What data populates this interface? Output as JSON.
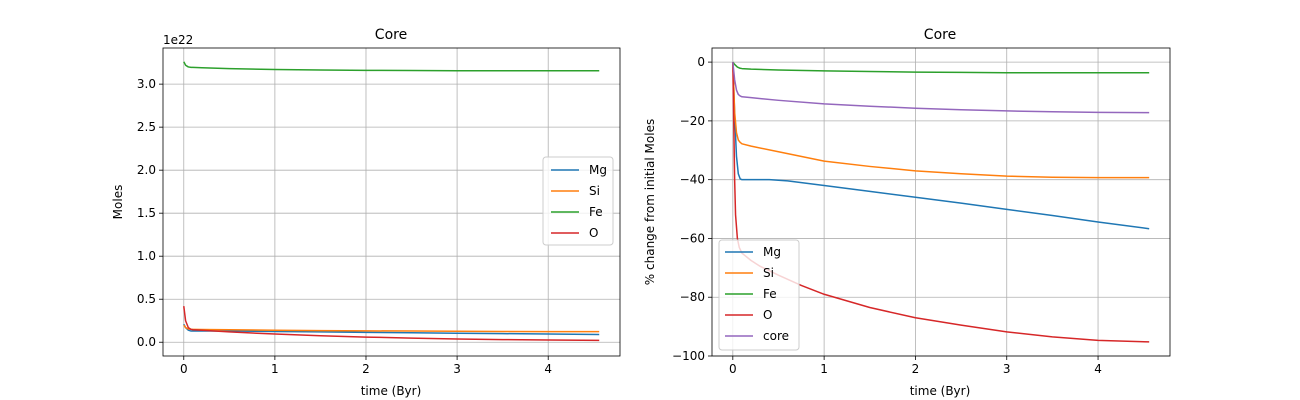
{
  "chart_data": [
    {
      "type": "line",
      "title": "Core",
      "xlabel": "time (Byr)",
      "ylabel": "Moles",
      "y_offset_label": "1e22",
      "xlim": [
        -0.228,
        4.788
      ],
      "ylim": [
        -0.16,
        3.42
      ],
      "xticks": [
        0,
        1,
        2,
        3,
        4
      ],
      "xtick_labels": [
        "0",
        "1",
        "2",
        "3",
        "4"
      ],
      "yticks": [
        0.0,
        0.5,
        1.0,
        1.5,
        2.0,
        2.5,
        3.0
      ],
      "ytick_labels": [
        "0.0",
        "0.5",
        "1.0",
        "1.5",
        "2.0",
        "2.5",
        "3.0"
      ],
      "grid": true,
      "legend_position": "center-right",
      "series": [
        {
          "name": "Mg",
          "color": "#1f77b4",
          "x": [
            0,
            0.02,
            0.05,
            0.08,
            0.1,
            0.2,
            0.5,
            1,
            1.5,
            2,
            2.5,
            3,
            3.5,
            4,
            4.56
          ],
          "y": [
            0.21,
            0.17,
            0.14,
            0.13,
            0.13,
            0.13,
            0.13,
            0.125,
            0.12,
            0.115,
            0.11,
            0.105,
            0.1,
            0.095,
            0.09
          ]
        },
        {
          "name": "Si",
          "color": "#ff7f0e",
          "x": [
            0,
            0.02,
            0.05,
            0.08,
            0.1,
            0.2,
            0.5,
            1,
            1.5,
            2,
            2.5,
            3,
            3.5,
            4,
            4.56
          ],
          "y": [
            0.2,
            0.17,
            0.155,
            0.15,
            0.15,
            0.148,
            0.145,
            0.14,
            0.135,
            0.132,
            0.13,
            0.127,
            0.125,
            0.124,
            0.123
          ]
        },
        {
          "name": "Fe",
          "color": "#2ca02c",
          "x": [
            0,
            0.02,
            0.05,
            0.08,
            0.1,
            0.2,
            0.5,
            1,
            1.5,
            2,
            2.5,
            3,
            3.5,
            4,
            4.56
          ],
          "y": [
            3.26,
            3.22,
            3.2,
            3.195,
            3.195,
            3.19,
            3.18,
            3.17,
            3.165,
            3.16,
            3.158,
            3.155,
            3.155,
            3.155,
            3.155
          ]
        },
        {
          "name": "O",
          "color": "#d62728",
          "x": [
            0,
            0.02,
            0.05,
            0.08,
            0.1,
            0.2,
            0.5,
            1,
            1.5,
            2,
            2.5,
            3,
            3.5,
            4,
            4.56
          ],
          "y": [
            0.42,
            0.25,
            0.17,
            0.15,
            0.145,
            0.14,
            0.12,
            0.095,
            0.075,
            0.06,
            0.048,
            0.038,
            0.031,
            0.026,
            0.022
          ]
        }
      ]
    },
    {
      "type": "line",
      "title": "Core",
      "xlabel": "time (Byr)",
      "ylabel": "% change from initial Moles",
      "xlim": [
        -0.228,
        4.788
      ],
      "ylim": [
        -100,
        4.8
      ],
      "xticks": [
        0,
        1,
        2,
        3,
        4
      ],
      "xtick_labels": [
        "0",
        "1",
        "2",
        "3",
        "4"
      ],
      "yticks": [
        -100,
        -80,
        -60,
        -40,
        -20,
        0
      ],
      "ytick_labels": [
        "−100",
        "−80",
        "−60",
        "−40",
        "−20",
        "0"
      ],
      "grid": true,
      "legend_position": "lower-left",
      "series": [
        {
          "name": "Mg",
          "color": "#1f77b4",
          "x": [
            0,
            0.01,
            0.02,
            0.04,
            0.06,
            0.08,
            0.1,
            0.2,
            0.4,
            0.6,
            1,
            1.5,
            2,
            2.5,
            3,
            3.5,
            4,
            4.56
          ],
          "y": [
            0,
            -8,
            -18,
            -32,
            -38,
            -39.7,
            -40,
            -40,
            -40,
            -40.4,
            -42,
            -44,
            -46,
            -48,
            -50.1,
            -52.2,
            -54.4,
            -56.7
          ]
        },
        {
          "name": "Si",
          "color": "#ff7f0e",
          "x": [
            0,
            0.01,
            0.02,
            0.04,
            0.06,
            0.08,
            0.1,
            0.2,
            0.5,
            1,
            1.5,
            2,
            2.5,
            3,
            3.5,
            4,
            4.56
          ],
          "y": [
            0,
            -8,
            -17,
            -24,
            -26.5,
            -27.3,
            -27.8,
            -28.6,
            -30.5,
            -33.7,
            -35.5,
            -37,
            -38,
            -38.8,
            -39.2,
            -39.3,
            -39.3
          ]
        },
        {
          "name": "Fe",
          "color": "#2ca02c",
          "x": [
            0,
            0.02,
            0.05,
            0.08,
            0.1,
            0.2,
            0.5,
            1,
            1.5,
            2,
            2.5,
            3,
            3.5,
            4,
            4.56
          ],
          "y": [
            0,
            -0.8,
            -1.7,
            -2.1,
            -2.2,
            -2.4,
            -2.7,
            -3.0,
            -3.2,
            -3.4,
            -3.5,
            -3.6,
            -3.6,
            -3.6,
            -3.6
          ]
        },
        {
          "name": "O",
          "color": "#d62728",
          "x": [
            0,
            0.01,
            0.02,
            0.03,
            0.05,
            0.07,
            0.1,
            0.2,
            0.3,
            0.5,
            0.75,
            1,
            1.5,
            2,
            2.5,
            3,
            3.5,
            4,
            4.56
          ],
          "y": [
            0,
            -20,
            -40,
            -52,
            -60,
            -63,
            -65,
            -67.5,
            -69.5,
            -72.5,
            -76,
            -79,
            -83.5,
            -87,
            -89.5,
            -91.8,
            -93.5,
            -94.7,
            -95.2
          ]
        },
        {
          "name": "core",
          "color": "#9467bd",
          "x": [
            0,
            0.01,
            0.02,
            0.04,
            0.06,
            0.08,
            0.1,
            0.2,
            0.5,
            1,
            1.5,
            2,
            2.5,
            3,
            3.5,
            4,
            4.56
          ],
          "y": [
            0,
            -3,
            -6,
            -9.5,
            -11,
            -11.5,
            -11.8,
            -12.1,
            -13,
            -14.2,
            -15,
            -15.7,
            -16.2,
            -16.6,
            -16.9,
            -17.1,
            -17.2
          ]
        }
      ]
    }
  ]
}
